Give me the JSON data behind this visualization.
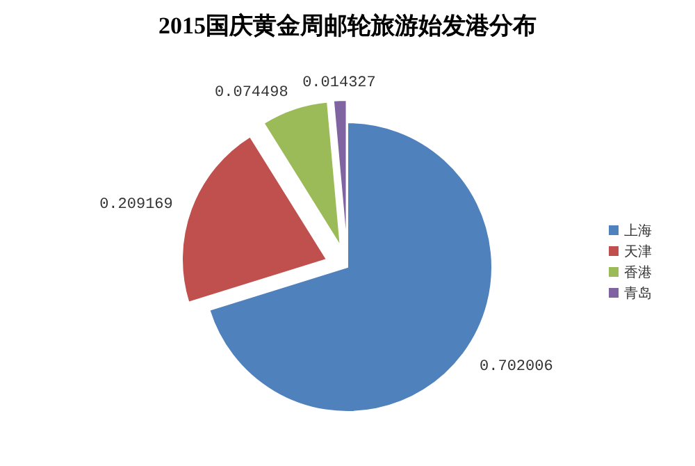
{
  "chart_data": {
    "type": "pie",
    "title": "2015国庆黄金周邮轮旅游始发港分布",
    "categories": [
      "上海",
      "天津",
      "香港",
      "青岛"
    ],
    "values": [
      0.702006,
      0.209169,
      0.074498,
      0.014327
    ],
    "colors": [
      "#4f81bd",
      "#c0504d",
      "#9bbb59",
      "#8064a2"
    ],
    "data_labels": true,
    "legend": "right"
  }
}
